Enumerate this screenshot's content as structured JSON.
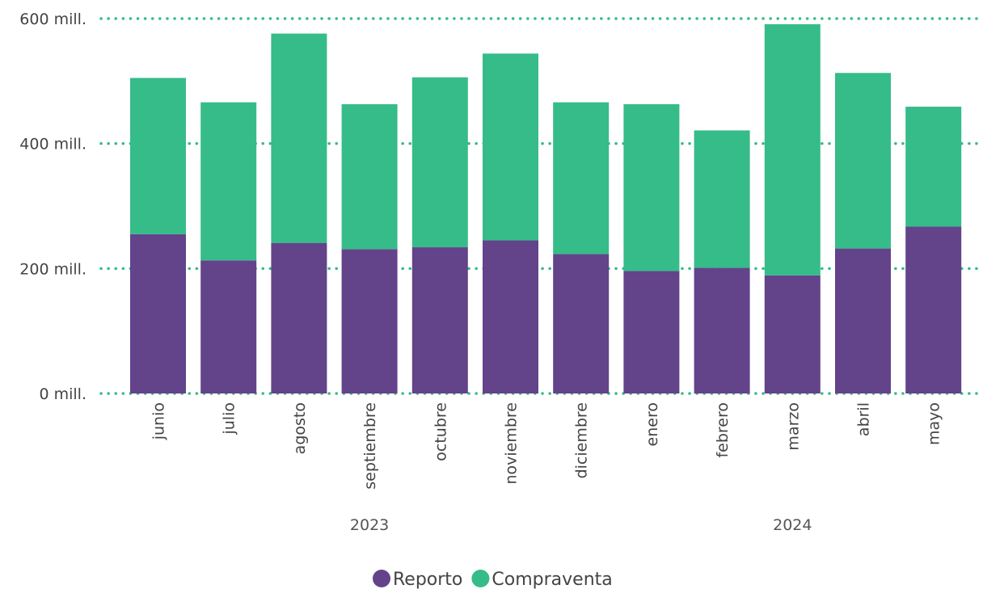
{
  "chart_data": {
    "type": "bar",
    "stacked": true,
    "categories": [
      "junio",
      "julio",
      "agosto",
      "septiembre",
      "octubre",
      "noviembre",
      "diciembre",
      "enero",
      "febrero",
      "marzo",
      "abril",
      "mayo"
    ],
    "category_groups": [
      {
        "label": "2023",
        "categories": [
          "junio",
          "julio",
          "agosto",
          "septiembre",
          "octubre",
          "noviembre",
          "diciembre"
        ]
      },
      {
        "label": "2024",
        "categories": [
          "enero",
          "febrero",
          "marzo",
          "abril",
          "mayo"
        ]
      }
    ],
    "series": [
      {
        "name": "Reporto",
        "color": "#63438a",
        "values": [
          255,
          213,
          241,
          231,
          234,
          245,
          223,
          196,
          201,
          189,
          232,
          267
        ]
      },
      {
        "name": "Compraventa",
        "color": "#36bc89",
        "values": [
          250,
          253,
          335,
          232,
          272,
          299,
          243,
          267,
          220,
          402,
          281,
          192
        ]
      }
    ],
    "yaxis": {
      "ticks": [
        0,
        200,
        400,
        600
      ],
      "tick_labels": [
        "0 mill.",
        "200 mill.",
        "400 mill.",
        "600 mill."
      ],
      "ylim": [
        0,
        600
      ]
    },
    "grid": true,
    "grid_color": "#36bc89",
    "legend_position": "bottom-center",
    "title": "",
    "xlabel": "",
    "ylabel": ""
  }
}
